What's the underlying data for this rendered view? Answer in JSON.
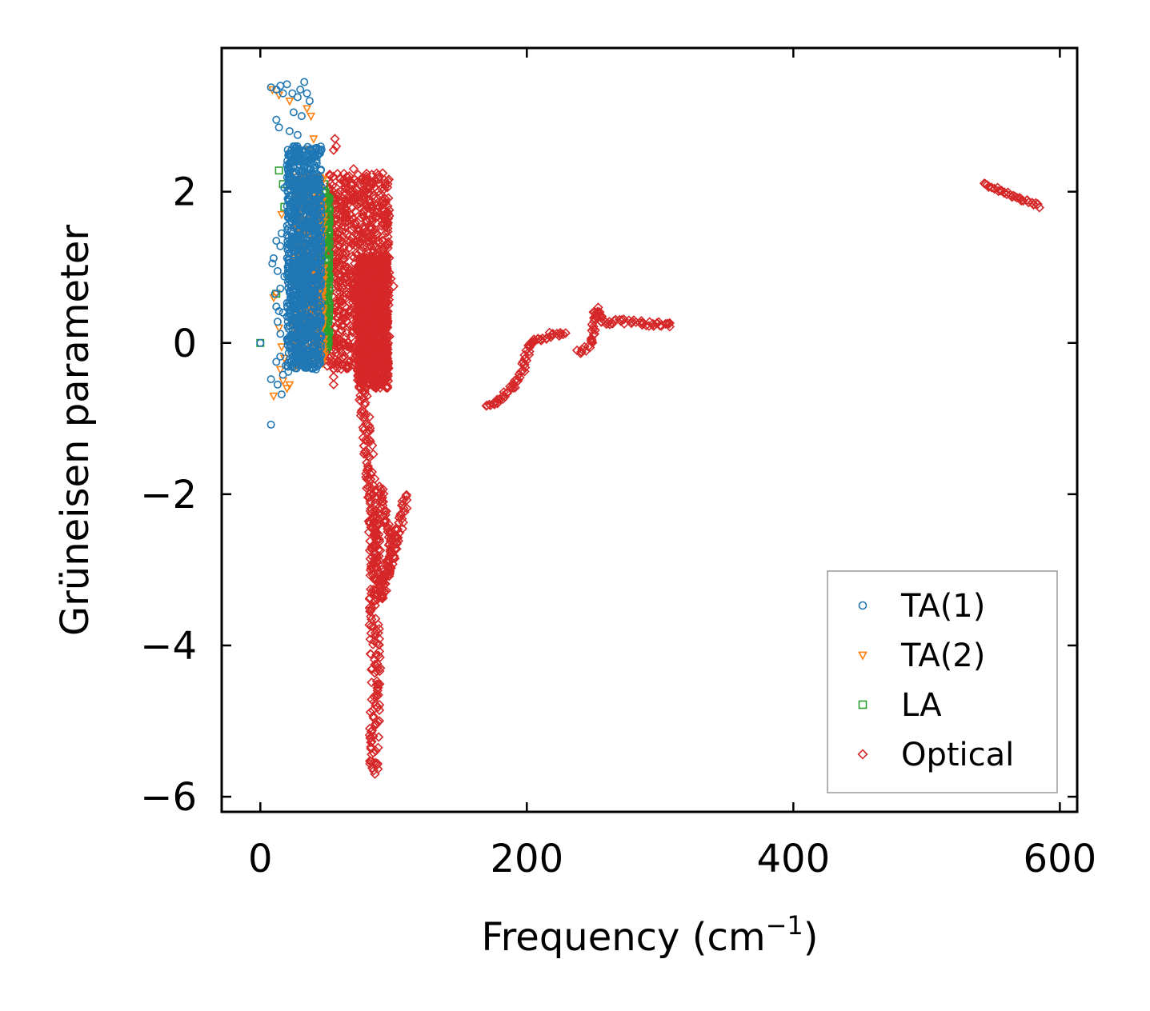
{
  "chart_data": {
    "type": "scatter",
    "title": "",
    "xlabel": "Frequency (cm",
    "xlabel_sup": "−1",
    "xlabel_close": ")",
    "ylabel": "Grüneisen parameter",
    "xlim": [
      -29,
      613
    ],
    "ylim": [
      -6.2,
      3.9
    ],
    "xticks": [
      0,
      200,
      400,
      600
    ],
    "xtick_labels": [
      "0",
      "200",
      "400",
      "600"
    ],
    "yticks": [
      -6,
      -4,
      -2,
      0,
      2
    ],
    "ytick_labels": [
      "−6",
      "−4",
      "−2",
      "0",
      "2"
    ],
    "grid": false,
    "legend_position": "lower-right",
    "series": [
      {
        "name": "TA(1)",
        "marker": "circle",
        "color": "#1f77b4",
        "points": [
          [
            8,
            3.38
          ],
          [
            12,
            3.35
          ],
          [
            15,
            3.4
          ],
          [
            17,
            3.3
          ],
          [
            20,
            3.42
          ],
          [
            24,
            3.3
          ],
          [
            28,
            3.25
          ],
          [
            30,
            3.35
          ],
          [
            33,
            3.45
          ],
          [
            35,
            3.3
          ],
          [
            37,
            3.2
          ],
          [
            25,
            3.05
          ],
          [
            31,
            3.0
          ],
          [
            12,
            2.95
          ],
          [
            14,
            2.85
          ],
          [
            22,
            2.8
          ],
          [
            28,
            2.75
          ],
          [
            26,
            2.6
          ],
          [
            24,
            2.4
          ],
          [
            20,
            2.35
          ],
          [
            18,
            2.05
          ],
          [
            22,
            1.95
          ],
          [
            20,
            1.55
          ],
          [
            16,
            1.45
          ],
          [
            12,
            1.35
          ],
          [
            15,
            1.28
          ],
          [
            10,
            1.12
          ],
          [
            9,
            1.05
          ],
          [
            13,
            0.95
          ],
          [
            18,
            0.88
          ],
          [
            15,
            0.72
          ],
          [
            11,
            0.65
          ],
          [
            12,
            0.48
          ],
          [
            14,
            0.42
          ],
          [
            17,
            0.4
          ],
          [
            20,
            0.35
          ],
          [
            13,
            0.28
          ],
          [
            15,
            0.12
          ],
          [
            20,
            0.05
          ],
          [
            24,
            -0.05
          ],
          [
            15,
            -0.18
          ],
          [
            12,
            -0.25
          ],
          [
            19,
            -0.3
          ],
          [
            21,
            -0.38
          ],
          [
            17,
            -0.42
          ],
          [
            8,
            -0.48
          ],
          [
            13,
            -0.55
          ],
          [
            16,
            -0.68
          ],
          [
            8,
            -1.08
          ],
          [
            0,
            0.0
          ],
          [
            38,
            2.1
          ],
          [
            36,
            1.8
          ],
          [
            40,
            1.5
          ],
          [
            34,
            1.2
          ],
          [
            30,
            0.9
          ],
          [
            28,
            0.5
          ],
          [
            32,
            0.2
          ],
          [
            36,
            -0.1
          ],
          [
            40,
            -0.25
          ],
          [
            26,
            1.7
          ],
          [
            23,
            1.2
          ],
          [
            27,
            0.7
          ],
          [
            42,
            0.8
          ],
          [
            44,
            1.9
          ],
          [
            43,
            0.3
          ]
        ],
        "cloud": {
          "x_range": [
            20,
            46
          ],
          "y_range": [
            -0.35,
            2.6
          ]
        }
      },
      {
        "name": "TA(2)",
        "marker": "triangle-down",
        "color": "#ff7f0e",
        "points": [
          [
            9,
            3.35
          ],
          [
            14,
            3.28
          ],
          [
            22,
            3.2
          ],
          [
            35,
            3.1
          ],
          [
            38,
            3.0
          ],
          [
            40,
            2.7
          ],
          [
            36,
            2.55
          ],
          [
            30,
            2.4
          ],
          [
            16,
            1.7
          ],
          [
            12,
            0.65
          ],
          [
            10,
            0.6
          ],
          [
            14,
            0.2
          ],
          [
            16,
            -0.05
          ],
          [
            18,
            -0.2
          ],
          [
            15,
            -0.35
          ],
          [
            17,
            -0.5
          ],
          [
            20,
            -0.6
          ],
          [
            10,
            -0.7
          ],
          [
            22,
            -0.55
          ],
          [
            45,
            1.4
          ],
          [
            46,
            0.7
          ],
          [
            44,
            0.2
          ],
          [
            42,
            1.0
          ]
        ],
        "cloud": {
          "x_range": [
            25,
            48
          ],
          "y_range": [
            -0.3,
            2.2
          ]
        }
      },
      {
        "name": "LA",
        "marker": "square",
        "color": "#2ca02c",
        "points": [
          [
            14,
            2.28
          ],
          [
            17,
            2.1
          ],
          [
            18,
            1.8
          ],
          [
            0,
            0.0
          ],
          [
            48,
            2.1
          ],
          [
            49,
            1.6
          ],
          [
            50,
            1.2
          ],
          [
            48,
            0.8
          ],
          [
            49,
            0.4
          ],
          [
            46,
            0.05
          ],
          [
            47,
            -0.1
          ],
          [
            12,
            0.65
          ]
        ],
        "cloud": {
          "x_range": [
            44,
            52
          ],
          "y_range": [
            -0.1,
            2.0
          ]
        }
      },
      {
        "name": "Optical",
        "marker": "diamond",
        "color": "#d62728",
        "points": [
          [
            56,
            2.7
          ],
          [
            57,
            2.6
          ],
          [
            55,
            2.55
          ],
          [
            70,
            2.3
          ],
          [
            65,
            2.2
          ],
          [
            78,
            2.15
          ],
          [
            95,
            0.95
          ],
          [
            98,
            0.85
          ],
          [
            100,
            0.75
          ],
          [
            92,
            0.55
          ],
          [
            55,
            -0.45
          ],
          [
            55,
            -0.55
          ],
          [
            80,
            -1.8
          ],
          [
            82,
            -2.0
          ],
          [
            85,
            -5.55
          ],
          [
            86,
            -5.7
          ],
          [
            84,
            -5.62
          ]
        ],
        "clusters": [
          {
            "x_range": [
              50,
              97
            ],
            "y_range": [
              -0.35,
              2.25
            ]
          },
          {
            "x_range": [
              73,
              96
            ],
            "y_range": [
              -0.6,
              1.15
            ]
          }
        ],
        "paths": [
          {
            "coords": [
              [
                75,
                -0.35
              ],
              [
                78,
                -0.8
              ],
              [
                80,
                -1.2
              ],
              [
                82,
                -1.6
              ],
              [
                84,
                -2.2
              ],
              [
                86,
                -2.9
              ],
              [
                85,
                -3.5
              ],
              [
                86,
                -4.0
              ],
              [
                87,
                -4.5
              ],
              [
                86,
                -5.0
              ],
              [
                85,
                -5.4
              ],
              [
                86,
                -5.65
              ]
            ],
            "spread": 6
          },
          {
            "coords": [
              [
                86,
                -2.2
              ],
              [
                88,
                -2.8
              ],
              [
                90,
                -3.4
              ],
              [
                94,
                -3.1
              ],
              [
                98,
                -2.9
              ],
              [
                102,
                -2.6
              ],
              [
                106,
                -2.3
              ],
              [
                110,
                -2.0
              ]
            ],
            "spread": 4
          },
          {
            "coords": [
              [
                90,
                -1.9
              ],
              [
                94,
                -2.3
              ],
              [
                98,
                -2.6
              ],
              [
                96,
                -3.0
              ],
              [
                92,
                -3.2
              ]
            ],
            "spread": 3
          },
          {
            "coords": [
              [
                170,
                -0.85
              ],
              [
                180,
                -0.75
              ],
              [
                188,
                -0.6
              ],
              [
                195,
                -0.45
              ],
              [
                198,
                -0.3
              ],
              [
                200,
                -0.15
              ],
              [
                202,
                -0.02
              ],
              [
                205,
                0.05
              ],
              [
                210,
                0.05
              ],
              [
                215,
                0.08
              ],
              [
                220,
                0.12
              ],
              [
                225,
                0.12
              ],
              [
                230,
                0.15
              ]
            ],
            "spread": 3
          },
          {
            "coords": [
              [
                238,
                -0.12
              ],
              [
                244,
                -0.1
              ],
              [
                248,
                0.0
              ],
              [
                250,
                0.2
              ],
              [
                252,
                0.45
              ],
              [
                256,
                0.3
              ],
              [
                260,
                0.25
              ],
              [
                266,
                0.28
              ],
              [
                274,
                0.28
              ],
              [
                282,
                0.27
              ],
              [
                290,
                0.25
              ],
              [
                300,
                0.25
              ],
              [
                310,
                0.24
              ]
            ],
            "spread": 3
          },
          {
            "coords": [
              [
                543,
                2.12
              ],
              [
                550,
                2.05
              ],
              [
                558,
                2.0
              ],
              [
                565,
                1.95
              ],
              [
                572,
                1.9
              ],
              [
                580,
                1.85
              ],
              [
                586,
                1.8
              ]
            ],
            "spread": 2
          }
        ]
      }
    ]
  },
  "legend": {
    "items": [
      {
        "label": "TA(1)",
        "marker": "circle",
        "color": "#1f77b4"
      },
      {
        "label": "TA(2)",
        "marker": "triangle-down",
        "color": "#ff7f0e"
      },
      {
        "label": "LA",
        "marker": "square",
        "color": "#2ca02c"
      },
      {
        "label": "Optical",
        "marker": "diamond",
        "color": "#d62728"
      }
    ]
  }
}
